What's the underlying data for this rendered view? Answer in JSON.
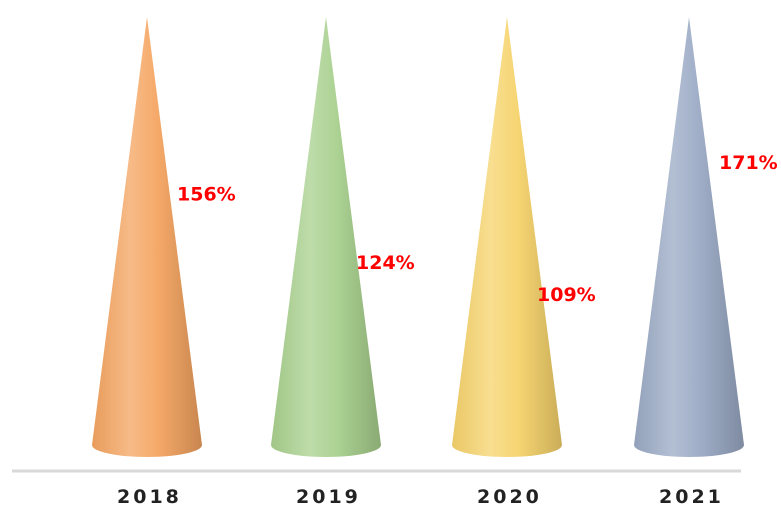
{
  "chart_data": {
    "type": "bar",
    "bar_shape": "cone",
    "categories": [
      "2018",
      "2019",
      "2020",
      "2021"
    ],
    "values": [
      156,
      124,
      109,
      171
    ],
    "data_labels": [
      "156%",
      "124%",
      "109%",
      "171%"
    ],
    "unit": "%",
    "title": "",
    "xlabel": "",
    "ylabel": "",
    "legend": "none",
    "grid": false,
    "y_axis_visible": false,
    "label_color": "#ff0000",
    "category_label_color": "#222222",
    "baseline_color": "#d9d9d9",
    "series_colors": [
      "#f4a460",
      "#a8d08d",
      "#f6d36b",
      "#9aa9c4"
    ]
  }
}
